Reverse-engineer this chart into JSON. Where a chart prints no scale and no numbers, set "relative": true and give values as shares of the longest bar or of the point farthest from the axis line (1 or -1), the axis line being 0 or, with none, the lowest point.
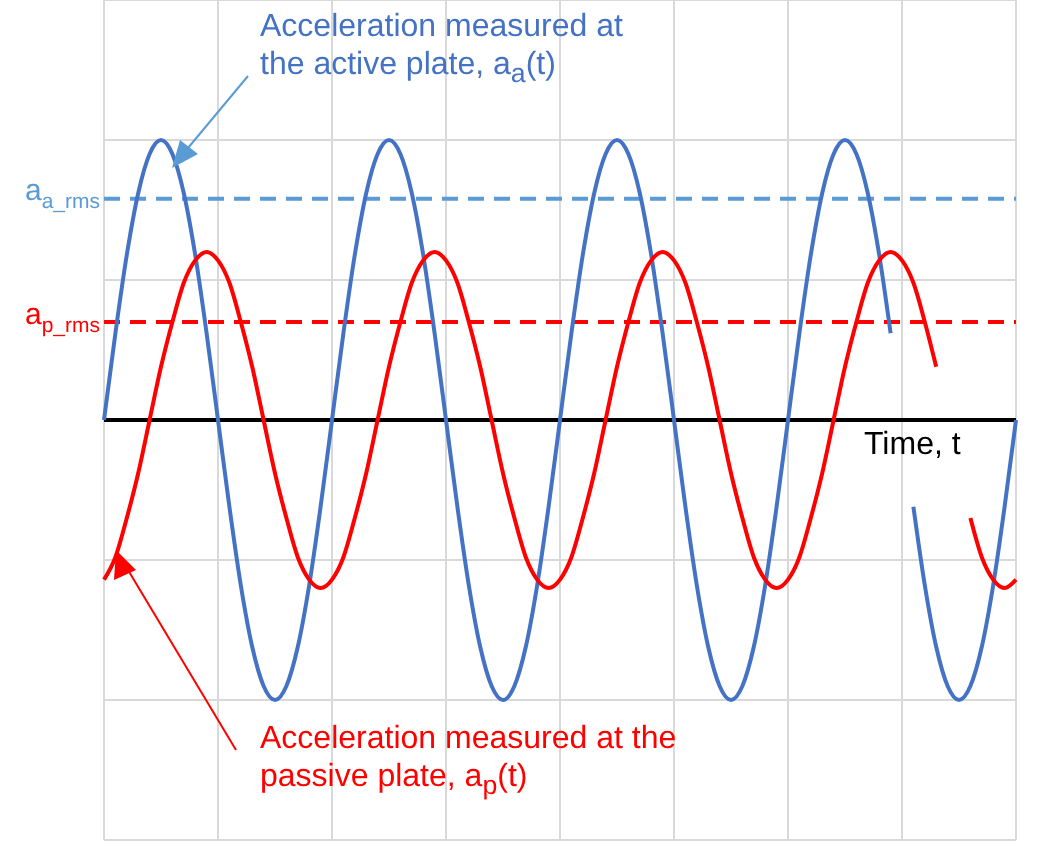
{
  "chart_data": {
    "type": "line",
    "relative": true,
    "xlabel": "Time, t",
    "grid": true,
    "marker": "none",
    "line_style": "solid",
    "categories": [
      null,
      null,
      null,
      null,
      null,
      null,
      null,
      null,
      null,
      null,
      null,
      null,
      null,
      null,
      null,
      null,
      null,
      null,
      null,
      null,
      null,
      null,
      null,
      null,
      null,
      null,
      null,
      null,
      null,
      null,
      null,
      null,
      null,
      null,
      null,
      null,
      null,
      null,
      null,
      null,
      null,
      null,
      null,
      null,
      null,
      null,
      null,
      null,
      null,
      null,
      null,
      null,
      null,
      null,
      null,
      null,
      null,
      null,
      null,
      null,
      null,
      null,
      null,
      null,
      null,
      null,
      null,
      null,
      null,
      null,
      null,
      null,
      null,
      null,
      null,
      null,
      null,
      null,
      null,
      null,
      null
    ],
    "series": [
      {
        "color": "#4472c4",
        "values": [
          0,
          0.31,
          0.59,
          0.81,
          0.95,
          1,
          0.95,
          0.81,
          0.59,
          0.31,
          0,
          -0.31,
          -0.59,
          -0.81,
          -0.95,
          -1,
          -0.95,
          -0.81,
          -0.59,
          -0.31,
          0,
          0.31,
          0.59,
          0.81,
          0.95,
          1,
          0.95,
          0.81,
          0.59,
          0.31,
          0,
          -0.31,
          -0.59,
          -0.81,
          -0.95,
          -1,
          -0.95,
          -0.81,
          -0.59,
          -0.31,
          0,
          0.31,
          0.59,
          0.81,
          0.95,
          1,
          0.95,
          0.81,
          0.59,
          0.31,
          0,
          -0.31,
          -0.59,
          -0.81,
          -0.95,
          -1,
          -0.95,
          -0.81,
          -0.59,
          -0.31,
          0,
          0.31,
          0.59,
          0.81,
          0.95,
          1,
          0.95,
          0.81,
          0.59,
          0.31,
          null,
          -0.31,
          -0.59,
          -0.81,
          -0.95,
          -1,
          -0.95,
          -0.81,
          -0.59,
          -0.31,
          0
        ]
      },
      {
        "color": "#ff0000",
        "values": [
          -0.57,
          -0.49,
          -0.35,
          -0.19,
          0,
          0.19,
          0.35,
          0.49,
          0.57,
          0.6,
          0.57,
          0.49,
          0.35,
          0.19,
          0,
          -0.19,
          -0.35,
          -0.49,
          -0.57,
          -0.6,
          -0.57,
          -0.49,
          -0.35,
          -0.19,
          0,
          0.19,
          0.35,
          0.49,
          0.57,
          0.6,
          0.57,
          0.49,
          0.35,
          0.19,
          0,
          -0.19,
          -0.35,
          -0.49,
          -0.57,
          -0.6,
          -0.57,
          -0.49,
          -0.35,
          -0.19,
          0,
          0.19,
          0.35,
          0.49,
          0.57,
          0.6,
          0.57,
          0.49,
          0.35,
          0.19,
          0,
          -0.19,
          -0.35,
          -0.49,
          -0.57,
          -0.6,
          -0.57,
          -0.49,
          -0.35,
          -0.19,
          0,
          0.19,
          0.35,
          0.49,
          0.57,
          0.6,
          0.57,
          0.49,
          0.35,
          0.19,
          null,
          null,
          -0.35,
          -0.49,
          -0.57,
          -0.6,
          -0.57
        ]
      }
    ],
    "ref_lines": [
      {
        "axis": "y",
        "value": 0.79,
        "label": "a$_{a_rms}$",
        "color": "#5b9bd5",
        "line_style": "dashed"
      },
      {
        "axis": "y",
        "value": 0.35,
        "label": "a$_{p_rms}$",
        "color": "#ff0000",
        "line_style": "dashed"
      }
    ],
    "annotations": [
      "Acceleration measured at\nthe active plate, a$_{a}$(t)",
      "Acceleration measured at the\npassive plate, a$_{p}$(t)"
    ]
  }
}
